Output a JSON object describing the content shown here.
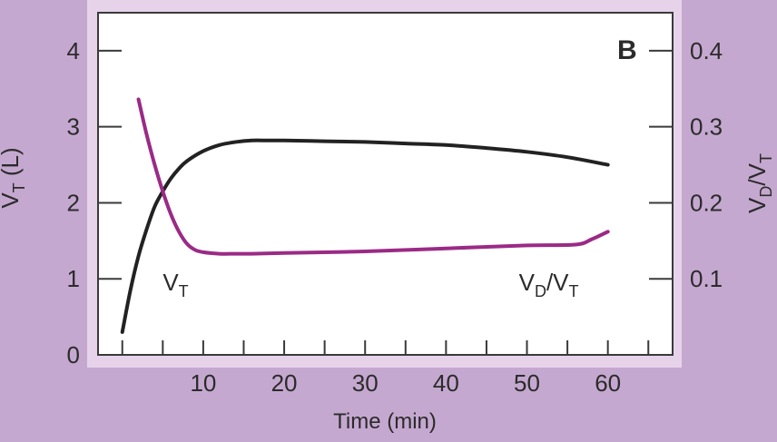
{
  "colors": {
    "background": "#c5a8d0",
    "frame": "#e6d3ea",
    "plot_bg": "#ffffff",
    "axis": "#3a3a3a",
    "text": "#2b2b2b",
    "series_vt": "#222222",
    "series_vdvt": "#9b2a86"
  },
  "chart_data": {
    "type": "line",
    "title": "",
    "panel_label": "B",
    "xlabel": "Time (min)",
    "ylabel_left": {
      "main": "V",
      "sub": "T",
      "suffix": " (L)"
    },
    "ylabel_right": {
      "a": "V",
      "a_sub": "D",
      "sep": "/V",
      "b_sub": "T"
    },
    "xlim": [
      -3,
      68
    ],
    "xticks": [
      0,
      5,
      10,
      15,
      20,
      25,
      30,
      35,
      40,
      45,
      50,
      55,
      60,
      65
    ],
    "xtick_labels": [
      {
        "x": 10,
        "label": "10"
      },
      {
        "x": 20,
        "label": "20"
      },
      {
        "x": 30,
        "label": "30"
      },
      {
        "x": 40,
        "label": "40"
      },
      {
        "x": 50,
        "label": "50"
      },
      {
        "x": 60,
        "label": "60"
      }
    ],
    "ylim_left": [
      0,
      4.5
    ],
    "yticks_left": [
      "0",
      "1",
      "2",
      "3",
      "4"
    ],
    "ylim_right": [
      0,
      0.45
    ],
    "yticks_right": [
      "0.1",
      "0.2",
      "0.3",
      "0.4"
    ],
    "series": [
      {
        "name": "VT",
        "label": {
          "main": "V",
          "sub": "T",
          "at_x": 5,
          "at_y": 0.85
        },
        "axis": "left",
        "x": [
          0,
          1,
          2,
          3,
          4,
          5,
          6,
          7,
          8,
          10,
          12,
          14,
          16,
          18,
          20,
          25,
          30,
          35,
          40,
          45,
          50,
          55,
          60
        ],
        "y": [
          0.3,
          0.85,
          1.3,
          1.65,
          1.95,
          2.15,
          2.32,
          2.45,
          2.55,
          2.68,
          2.76,
          2.8,
          2.82,
          2.82,
          2.82,
          2.81,
          2.8,
          2.78,
          2.76,
          2.72,
          2.67,
          2.6,
          2.5
        ]
      },
      {
        "name": "VD/VT",
        "label": {
          "a": "V",
          "a_sub": "D",
          "sep": "/V",
          "b_sub": "T",
          "at_x": 49,
          "at_y": 0.085
        },
        "axis": "right",
        "x": [
          2,
          3,
          4,
          5,
          6,
          7,
          8,
          9,
          10,
          12,
          14,
          16,
          20,
          30,
          40,
          50,
          56,
          58,
          60
        ],
        "y": [
          0.336,
          0.29,
          0.25,
          0.215,
          0.185,
          0.162,
          0.146,
          0.138,
          0.135,
          0.133,
          0.133,
          0.133,
          0.134,
          0.136,
          0.14,
          0.144,
          0.145,
          0.152,
          0.162
        ]
      }
    ]
  }
}
